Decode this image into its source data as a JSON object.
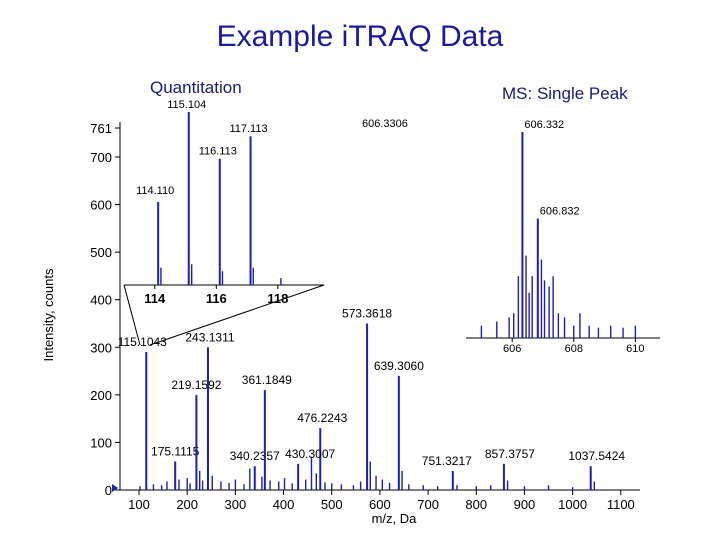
{
  "title": "Example iTRAQ Data",
  "left_subtitle": "Quantitation",
  "right_subtitle": "MS: Single Peak",
  "colors": {
    "title": "#1a1a9c",
    "peaks": "#1f1fb0",
    "axis": "#000000",
    "text": "#000000"
  },
  "chart_data": [
    {
      "type": "bar",
      "name": "main-spectrum",
      "title": "",
      "xlabel": "m/z, Da",
      "ylabel": "Intensity, counts",
      "xlim": [
        100,
        1200
      ],
      "ylim": [
        0,
        780
      ],
      "xticks": [
        100,
        200,
        300,
        400,
        500,
        600,
        700,
        800,
        900,
        1000,
        1100
      ],
      "yticks": [
        0,
        100,
        200,
        300,
        400,
        500,
        600,
        700,
        761
      ],
      "ytick_labels": [
        "0",
        "100",
        "200",
        "300",
        "400",
        "500",
        "600",
        "700",
        "761"
      ],
      "labeled_peaks": [
        {
          "x": 115.1043,
          "y": 290,
          "label": "115.1043"
        },
        {
          "x": 175.1115,
          "y": 60,
          "label": "175.1115"
        },
        {
          "x": 219.1592,
          "y": 200,
          "label": "219.1592"
        },
        {
          "x": 243.1311,
          "y": 300,
          "label": "243.1311"
        },
        {
          "x": 340.2357,
          "y": 50,
          "label": "340.2357"
        },
        {
          "x": 361.1849,
          "y": 210,
          "label": "361.1849"
        },
        {
          "x": 476.2243,
          "y": 130,
          "label": "476.2243"
        },
        {
          "x": 430.3007,
          "y": 55,
          "label": "430.3007"
        },
        {
          "x": 573.3618,
          "y": 350,
          "label": "573.3618"
        },
        {
          "x": 639.306,
          "y": 240,
          "label": "639.3060"
        },
        {
          "x": 751.3217,
          "y": 40,
          "label": "751.3217"
        },
        {
          "x": 857.3757,
          "y": 55,
          "label": "857.3757"
        },
        {
          "x": 1037.5424,
          "y": 50,
          "label": "1037.5424"
        }
      ],
      "minor_peaks": [
        {
          "x": 102,
          "y": 8
        },
        {
          "x": 130,
          "y": 12
        },
        {
          "x": 147,
          "y": 10
        },
        {
          "x": 158,
          "y": 18
        },
        {
          "x": 183,
          "y": 22
        },
        {
          "x": 200,
          "y": 25
        },
        {
          "x": 206,
          "y": 14
        },
        {
          "x": 226,
          "y": 40
        },
        {
          "x": 232,
          "y": 20
        },
        {
          "x": 252,
          "y": 30
        },
        {
          "x": 270,
          "y": 18
        },
        {
          "x": 287,
          "y": 15
        },
        {
          "x": 300,
          "y": 22
        },
        {
          "x": 318,
          "y": 12
        },
        {
          "x": 330,
          "y": 45
        },
        {
          "x": 355,
          "y": 28
        },
        {
          "x": 372,
          "y": 20
        },
        {
          "x": 390,
          "y": 18
        },
        {
          "x": 402,
          "y": 25
        },
        {
          "x": 418,
          "y": 14
        },
        {
          "x": 446,
          "y": 22
        },
        {
          "x": 458,
          "y": 70
        },
        {
          "x": 468,
          "y": 35
        },
        {
          "x": 486,
          "y": 16
        },
        {
          "x": 500,
          "y": 14
        },
        {
          "x": 520,
          "y": 12
        },
        {
          "x": 545,
          "y": 10
        },
        {
          "x": 560,
          "y": 18
        },
        {
          "x": 580,
          "y": 60
        },
        {
          "x": 592,
          "y": 30
        },
        {
          "x": 605,
          "y": 22
        },
        {
          "x": 620,
          "y": 15
        },
        {
          "x": 646,
          "y": 40
        },
        {
          "x": 660,
          "y": 12
        },
        {
          "x": 690,
          "y": 10
        },
        {
          "x": 720,
          "y": 8
        },
        {
          "x": 760,
          "y": 10
        },
        {
          "x": 800,
          "y": 8
        },
        {
          "x": 830,
          "y": 10
        },
        {
          "x": 865,
          "y": 20
        },
        {
          "x": 900,
          "y": 8
        },
        {
          "x": 950,
          "y": 10
        },
        {
          "x": 1000,
          "y": 6
        },
        {
          "x": 1045,
          "y": 18
        }
      ]
    },
    {
      "type": "bar",
      "name": "quantitation-inset",
      "xlim": [
        113,
        119.5
      ],
      "ylim": [
        0,
        100
      ],
      "xticks": [
        114,
        116,
        118
      ],
      "labeled_peaks": [
        {
          "x": 114.11,
          "y": 48,
          "label": "114.110"
        },
        {
          "x": 115.104,
          "y": 100,
          "label": "115.104"
        },
        {
          "x": 116.113,
          "y": 73,
          "label": "116.113"
        },
        {
          "x": 117.113,
          "y": 86,
          "label": "117.113"
        }
      ],
      "minor_peaks": [
        {
          "x": 114.2,
          "y": 10
        },
        {
          "x": 115.2,
          "y": 12
        },
        {
          "x": 116.2,
          "y": 8
        },
        {
          "x": 117.2,
          "y": 10
        },
        {
          "x": 118.1,
          "y": 4
        }
      ]
    },
    {
      "type": "bar",
      "name": "single-peak-inset",
      "xlim": [
        604.5,
        610.8
      ],
      "ylim": [
        0,
        100
      ],
      "xticks": [
        606,
        608,
        610
      ],
      "labeled_peaks": [
        {
          "x": 606.332,
          "y": 100,
          "label": "606.332"
        },
        {
          "x": 606.832,
          "y": 58,
          "label": "606.832"
        }
      ],
      "label_606_3306": "606.3306",
      "minor_peaks": [
        {
          "x": 605.0,
          "y": 6
        },
        {
          "x": 605.5,
          "y": 8
        },
        {
          "x": 605.9,
          "y": 10
        },
        {
          "x": 606.05,
          "y": 12
        },
        {
          "x": 606.2,
          "y": 30
        },
        {
          "x": 606.45,
          "y": 40
        },
        {
          "x": 606.55,
          "y": 22
        },
        {
          "x": 606.65,
          "y": 30
        },
        {
          "x": 606.95,
          "y": 38
        },
        {
          "x": 607.05,
          "y": 28
        },
        {
          "x": 607.2,
          "y": 25
        },
        {
          "x": 607.33,
          "y": 30
        },
        {
          "x": 607.5,
          "y": 12
        },
        {
          "x": 607.7,
          "y": 10
        },
        {
          "x": 608.0,
          "y": 6
        },
        {
          "x": 608.2,
          "y": 12
        },
        {
          "x": 608.5,
          "y": 6
        },
        {
          "x": 608.8,
          "y": 5
        },
        {
          "x": 609.2,
          "y": 6
        },
        {
          "x": 609.6,
          "y": 5
        },
        {
          "x": 610.0,
          "y": 6
        }
      ]
    }
  ]
}
